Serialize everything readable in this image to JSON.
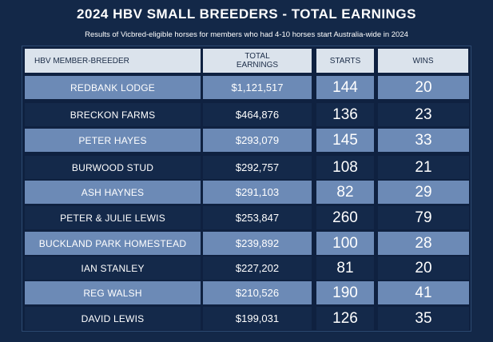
{
  "title": "2024 HBV SMALL BREEDERS - TOTAL EARNINGS",
  "subtitle": "Results of Vicbred-eligible horses for members who had 4-10 horses start Australia-wide in 2024",
  "columns": {
    "breeder": "HBV MEMBER-BREEDER",
    "earnings_line1": "TOTAL",
    "earnings_line2": "EARNINGS",
    "starts": "STARTS",
    "wins": "WINS"
  },
  "rows": [
    {
      "breeder": "REDBANK LODGE",
      "earnings": "$1,121,517",
      "starts": "144",
      "wins": "20"
    },
    {
      "breeder": "BRECKON FARMS",
      "earnings": "$464,876",
      "starts": "136",
      "wins": "23"
    },
    {
      "breeder": "PETER HAYES",
      "earnings": "$293,079",
      "starts": "145",
      "wins": "33"
    },
    {
      "breeder": "BURWOOD STUD",
      "earnings": "$292,757",
      "starts": "108",
      "wins": "21"
    },
    {
      "breeder": "ASH HAYNES",
      "earnings": "$291,103",
      "starts": "82",
      "wins": "29"
    },
    {
      "breeder": "PETER & JULIE LEWIS",
      "earnings": "$253,847",
      "starts": "260",
      "wins": "79"
    },
    {
      "breeder": "BUCKLAND PARK HOMESTEAD",
      "earnings": "$239,892",
      "starts": "100",
      "wins": "28"
    },
    {
      "breeder": "IAN STANLEY",
      "earnings": "$227,202",
      "starts": "81",
      "wins": "20"
    },
    {
      "breeder": "REG WALSH",
      "earnings": "$210,526",
      "starts": "190",
      "wins": "41"
    },
    {
      "breeder": "DAVID LEWIS",
      "earnings": "$199,031",
      "starts": "126",
      "wins": "35"
    }
  ],
  "colors": {
    "background": "#132848",
    "row_light": "#6c8ab6",
    "row_dark": "#14294a",
    "header": "#dbe3ec"
  }
}
